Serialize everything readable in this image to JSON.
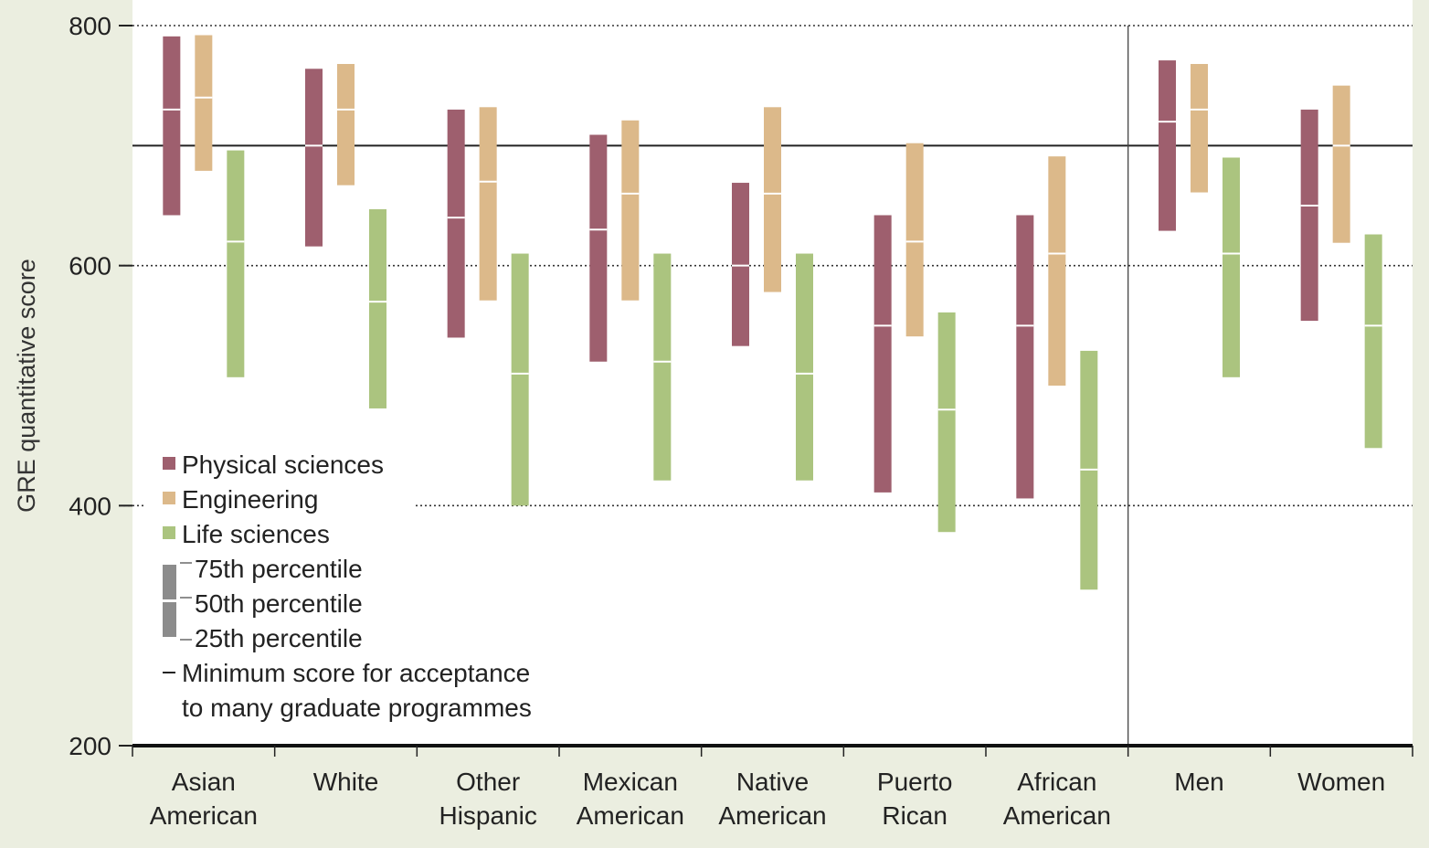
{
  "chart_data": {
    "type": "box-range",
    "title": "",
    "ylabel": "GRE quantitative score",
    "ylim": [
      200,
      800
    ],
    "yticks": [
      200,
      400,
      600,
      800
    ],
    "grid": "dotted at 400, 600, 800",
    "minimum_score": 700,
    "categories": [
      "Asian\nAmerican",
      "White",
      "Other\nHispanic",
      "Mexican\nAmerican",
      "Native\nAmerican",
      "Puerto\nRican",
      "African\nAmerican",
      "Men",
      "Women"
    ],
    "divider_after_category_index": 6,
    "series": [
      {
        "name": "Physical sciences",
        "color": "#9e5f6e",
        "p25": [
          642,
          616,
          540,
          520,
          533,
          411,
          406,
          629,
          554
        ],
        "p50": [
          730,
          700,
          640,
          630,
          600,
          550,
          550,
          720,
          650
        ],
        "p75": [
          791,
          764,
          730,
          709,
          669,
          642,
          642,
          771,
          730
        ]
      },
      {
        "name": "Engineering",
        "color": "#dcb98a",
        "p25": [
          679,
          667,
          571,
          571,
          578,
          541,
          500,
          661,
          619
        ],
        "p50": [
          740,
          730,
          670,
          660,
          660,
          620,
          610,
          730,
          700
        ],
        "p75": [
          792,
          768,
          732,
          721,
          732,
          702,
          691,
          768,
          750
        ]
      },
      {
        "name": "Life sciences",
        "color": "#abc47f",
        "p25": [
          507,
          481,
          400,
          421,
          421,
          378,
          330,
          507,
          448
        ],
        "p50": [
          620,
          570,
          510,
          520,
          510,
          480,
          430,
          610,
          550
        ],
        "p75": [
          696,
          647,
          610,
          610,
          610,
          561,
          529,
          690,
          626
        ]
      }
    ],
    "legend": {
      "placement": "lower-left",
      "items": [
        "Physical sciences",
        "Engineering",
        "Life sciences"
      ],
      "percentiles": [
        "75th percentile",
        "50th percentile",
        "25th percentile"
      ],
      "minimum_line_1": "Minimum score for acceptance",
      "minimum_line_2": "to many graduate programmes"
    }
  }
}
